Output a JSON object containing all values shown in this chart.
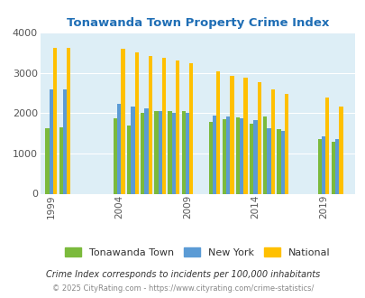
{
  "title": "Tonawanda Town Property Crime Index",
  "years": [
    1999,
    2000,
    2004,
    2005,
    2006,
    2007,
    2008,
    2009,
    2011,
    2012,
    2013,
    2014,
    2015,
    2016,
    2019,
    2020
  ],
  "tonawanda": [
    1620,
    1640,
    1880,
    1700,
    2000,
    2050,
    2060,
    2060,
    1780,
    1850,
    1900,
    1750,
    1930,
    1600,
    1350,
    1290
  ],
  "new_york": [
    2590,
    2590,
    2230,
    2170,
    2110,
    2060,
    2020,
    2000,
    1940,
    1930,
    1870,
    1830,
    1620,
    1560,
    1430,
    1360
  ],
  "national": [
    3620,
    3620,
    3600,
    3510,
    3420,
    3370,
    3310,
    3240,
    3050,
    2940,
    2880,
    2770,
    2590,
    2490,
    2390,
    2170
  ],
  "x_tick_years": [
    1999,
    2004,
    2009,
    2014,
    2019
  ],
  "ylim": [
    0,
    4000
  ],
  "yticks": [
    0,
    1000,
    2000,
    3000,
    4000
  ],
  "color_tonawanda": "#7bba3c",
  "color_newyork": "#5b9bd5",
  "color_national": "#ffc000",
  "bg_color": "#ddeef6",
  "title_color": "#1f6eb5",
  "legend_labels": [
    "Tonawanda Town",
    "New York",
    "National"
  ],
  "footnote1": "Crime Index corresponds to incidents per 100,000 inhabitants",
  "footnote2": "© 2025 CityRating.com - https://www.cityrating.com/crime-statistics/",
  "bar_width": 0.28
}
